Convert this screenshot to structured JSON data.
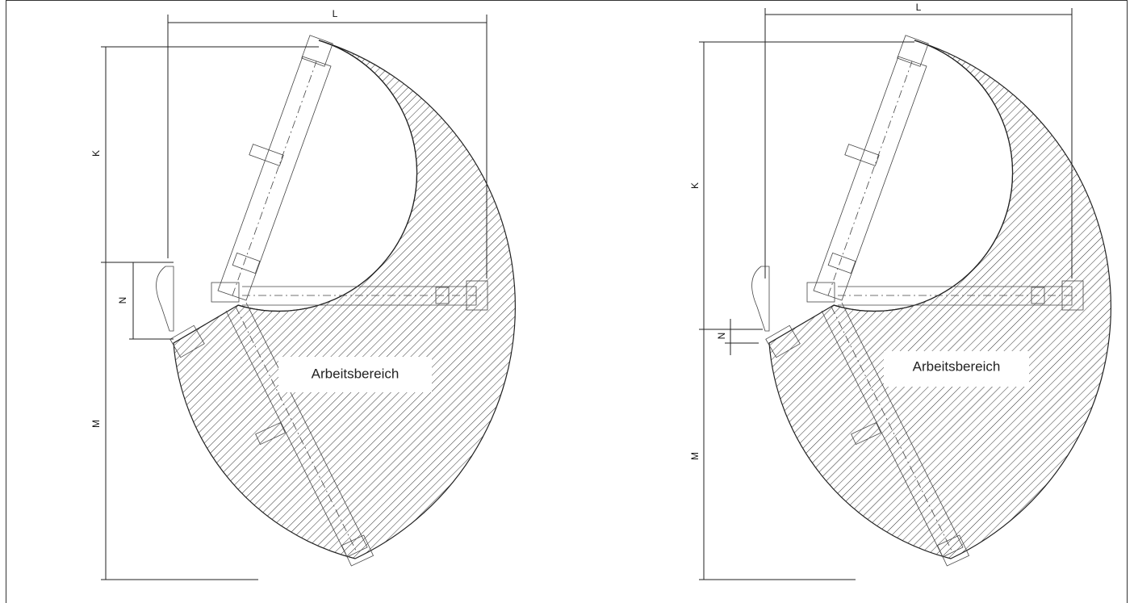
{
  "drawings": [
    {
      "dimensions": [
        "L",
        "K",
        "N",
        "M"
      ],
      "area_label": "Arbeitsbereich"
    },
    {
      "dimensions": [
        "L",
        "K",
        "N",
        "M"
      ],
      "area_label": "Arbeitsbereich"
    }
  ]
}
